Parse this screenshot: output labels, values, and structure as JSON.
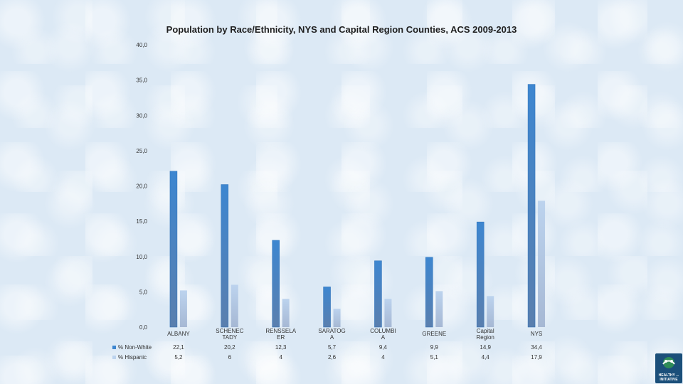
{
  "chart_data": {
    "type": "bar",
    "title": "Population by Race/Ethnicity, NYS and Capital Region Counties, ACS 2009-2013",
    "ylim": [
      0,
      40
    ],
    "yticks": [
      "0,0",
      "5,0",
      "10,0",
      "15,0",
      "20,0",
      "25,0",
      "30,0",
      "35,0",
      "40,0"
    ],
    "ytick_values": [
      0,
      5,
      10,
      15,
      20,
      25,
      30,
      35,
      40
    ],
    "categories": [
      [
        "ALBANY"
      ],
      [
        "SCHENEC",
        "TADY"
      ],
      [
        "RENSSELA",
        "ER"
      ],
      [
        "SARATOG",
        "A"
      ],
      [
        "COLUMBI",
        "A"
      ],
      [
        "GREENE"
      ],
      [
        "Capital",
        "Region"
      ],
      [
        "NYS"
      ]
    ],
    "series": [
      {
        "name": "% Non-White",
        "color": "#3d86d0",
        "values": [
          22.1,
          20.2,
          12.3,
          5.7,
          9.4,
          9.9,
          14.9,
          34.4
        ],
        "labels": [
          "22,1",
          "20,2",
          "12,3",
          "5,7",
          "9,4",
          "9,9",
          "14,9",
          "34,4"
        ]
      },
      {
        "name": "% Hispanic",
        "color": "#bcd3ee",
        "values": [
          5.2,
          6,
          4,
          2.6,
          4,
          5.1,
          4.4,
          17.9
        ],
        "labels": [
          "5,2",
          "6",
          "4",
          "2,6",
          "4",
          "5,1",
          "4,4",
          "17,9"
        ]
      }
    ],
    "grid": false,
    "legend": "data-table"
  },
  "logo": {
    "text": "HEALTHY ... INITIATIVE"
  }
}
